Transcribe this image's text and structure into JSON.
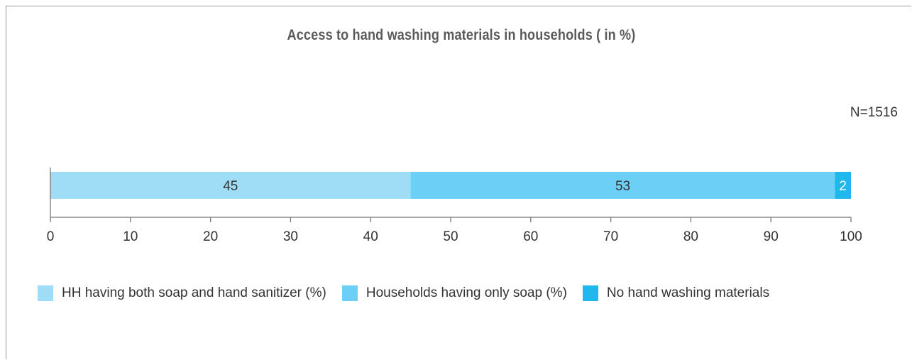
{
  "chart_data": {
    "type": "bar",
    "orientation": "horizontal",
    "stacked": true,
    "title": "Access to hand washing materials in households ( in %)",
    "note": "N=1516",
    "xlim": [
      0,
      100
    ],
    "xticks": [
      "0",
      "10",
      "20",
      "30",
      "40",
      "50",
      "60",
      "70",
      "80",
      "90",
      "100"
    ],
    "grid": false,
    "legend_position": "bottom",
    "series": [
      {
        "name": "HH having both soap and hand sanitizer (%)",
        "values": [
          45
        ],
        "label": "45",
        "color": "#9fdcf5",
        "label_color": "#333333"
      },
      {
        "name": "Households having only soap (%)",
        "values": [
          53
        ],
        "label": "53",
        "color": "#6ccff5",
        "label_color": "#333333"
      },
      {
        "name": "No hand washing materials",
        "values": [
          2
        ],
        "label": "2",
        "color": "#1fb8ec",
        "label_color": "#ffffff"
      }
    ]
  }
}
